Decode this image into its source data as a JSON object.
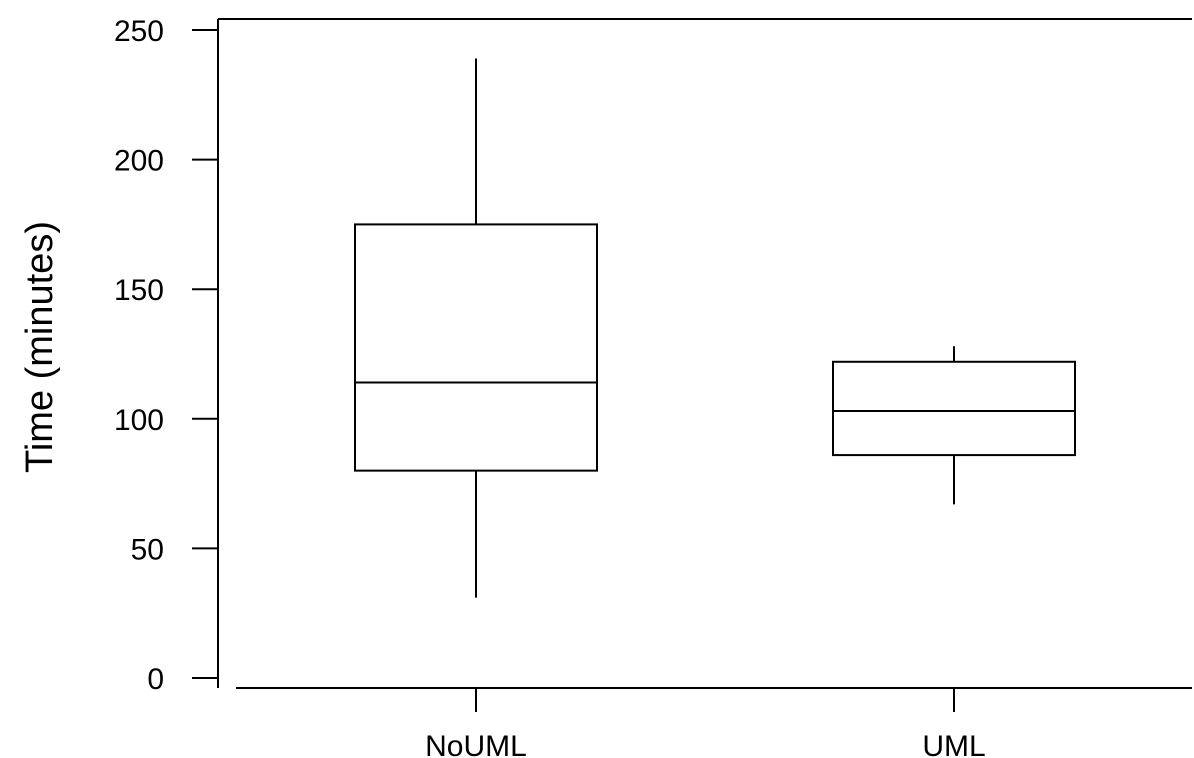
{
  "chart_data": {
    "type": "box",
    "ylabel": "Time (minutes)",
    "xlabel": "",
    "categories": [
      "NoUML",
      "UML"
    ],
    "boxes": [
      {
        "category": "NoUML",
        "whisker_low": 31,
        "q1": 80,
        "median": 114,
        "q3": 175,
        "whisker_high": 239
      },
      {
        "category": "UML",
        "whisker_low": 67,
        "q1": 86,
        "median": 103,
        "q3": 122,
        "whisker_high": 128
      }
    ],
    "ylim": [
      0,
      250
    ],
    "yticks": [
      "0",
      "50",
      "100",
      "150",
      "200",
      "250"
    ],
    "grid": false,
    "colors": {
      "line": "#000000",
      "fill": "#ffffff"
    }
  }
}
